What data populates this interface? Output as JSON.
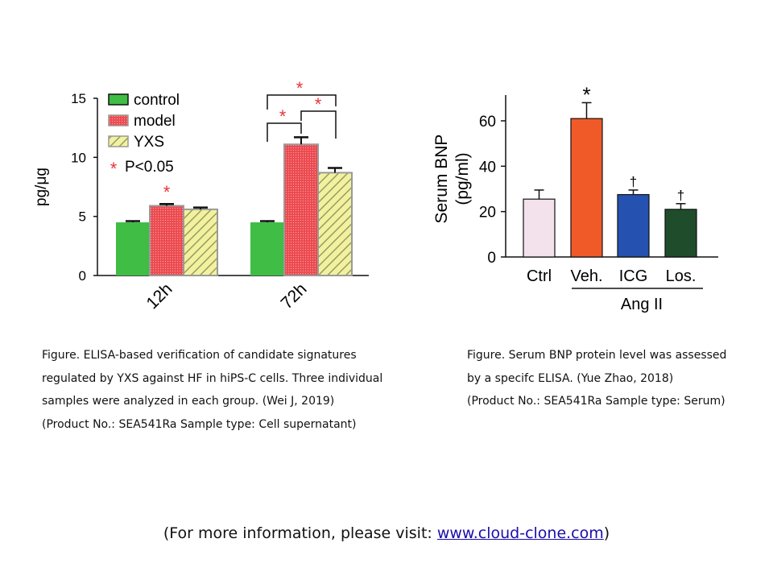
{
  "colors": {
    "control": "#3fbd45",
    "model": "#ec4a4f",
    "model_border": "#9a9a9a",
    "yxs": "#f2f29e",
    "yxs_stripe": "#9a9a66",
    "star": "#e8343a",
    "ctrl": "#f3e1ec",
    "veh": "#f05a28",
    "icg": "#2552b0",
    "los": "#1f4d2b"
  },
  "chart_data": [
    {
      "type": "bar",
      "ylabel": "pg/μg",
      "ylim": [
        0,
        15
      ],
      "yticks": [
        "0",
        "5",
        "10",
        "15"
      ],
      "categories": [
        "12h",
        "72h"
      ],
      "series": [
        {
          "name": "control",
          "values": [
            4.5,
            4.5
          ],
          "errors": [
            0.1,
            0.1
          ]
        },
        {
          "name": "model",
          "values": [
            5.9,
            11.1
          ],
          "errors": [
            0.15,
            0.6
          ]
        },
        {
          "name": "YXS",
          "values": [
            5.6,
            8.7
          ],
          "errors": [
            0.15,
            0.4
          ]
        }
      ],
      "legend": {
        "position": "top-left",
        "items": [
          "control",
          "model",
          "YXS"
        ],
        "significance_star": "*",
        "significance_text": "P<0.05"
      },
      "annotations": {
        "star": "*"
      }
    },
    {
      "type": "bar",
      "ylabel_line1": "Serum BNP",
      "ylabel_line2": "(pg/ml)",
      "ylim": [
        0,
        70
      ],
      "yticks": [
        "0",
        "20",
        "40",
        "60"
      ],
      "categories": [
        "Ctrl",
        "Veh.",
        "ICG",
        "Los."
      ],
      "values": [
        25.5,
        61,
        27.5,
        21
      ],
      "errors": [
        4,
        7,
        2,
        2.5
      ],
      "markers": [
        "",
        "*",
        "†",
        "†"
      ],
      "group_label": "Ang II"
    }
  ],
  "captions": {
    "left": [
      "Figure. ELISA-based verification of candidate signatures",
      "regulated by YXS against HF in hiPS-C cells. Three individual",
      "samples were analyzed in each group. (Wei J, 2019)",
      "(Product No.: SEA541Ra Sample type: Cell supernatant)"
    ],
    "right": [
      "Figure. Serum BNP protein level was assessed",
      "by a specifc ELISA. (Yue Zhao, 2018)",
      "(Product No.: SEA541Ra Sample type: Serum)"
    ]
  },
  "footer": {
    "prefix": "(For more information, please visit: ",
    "link": "www.cloud-clone.com",
    "suffix": ")"
  }
}
